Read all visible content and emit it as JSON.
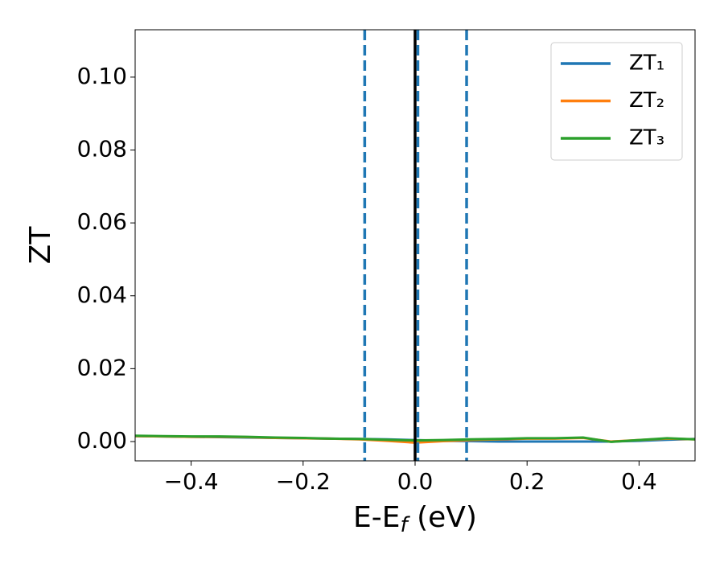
{
  "chart_data": {
    "type": "line",
    "x_label": {
      "main": "E-E",
      "sub": "f",
      "unit": "(eV)"
    },
    "y_label": "ZT",
    "x": [
      -0.5,
      -0.45,
      -0.4,
      -0.35,
      -0.3,
      -0.25,
      -0.2,
      -0.15,
      -0.1,
      -0.05,
      0.0,
      0.05,
      0.1,
      0.15,
      0.2,
      0.25,
      0.3,
      0.35,
      0.4,
      0.45,
      0.5
    ],
    "series": [
      {
        "name": "ZT₁",
        "color": "#1f77b4",
        "values": [
          0.0015,
          0.0014,
          0.0013,
          0.0012,
          0.0011,
          0.001,
          0.0009,
          0.0008,
          0.0007,
          0.0006,
          0.0004,
          0.0002,
          0.0001,
          0.0,
          0.0,
          0.0,
          0.0,
          0.0,
          0.0002,
          0.0005,
          0.0007
        ]
      },
      {
        "name": "ZT₂",
        "color": "#ff7f0e",
        "values": [
          0.0015,
          0.0014,
          0.0013,
          0.0013,
          0.0012,
          0.001,
          0.0009,
          0.0008,
          0.0006,
          0.0002,
          -0.0003,
          0.0001,
          0.0004,
          0.0006,
          0.0008,
          0.0008,
          0.001,
          0.0,
          0.0004,
          0.0008,
          0.0006
        ]
      },
      {
        "name": "ZT₃",
        "color": "#2ca02c",
        "values": [
          0.0016,
          0.0015,
          0.0014,
          0.0014,
          0.0013,
          0.0011,
          0.001,
          0.0008,
          0.0007,
          0.0005,
          0.0003,
          0.0004,
          0.0006,
          0.0007,
          0.0009,
          0.0009,
          0.0011,
          -0.0001,
          0.0004,
          0.0009,
          0.0006
        ]
      }
    ],
    "vlines": [
      {
        "x": -0.09,
        "color": "#1f77b4",
        "style": "dashed"
      },
      {
        "x": 0.0,
        "color": "#000000",
        "style": "solid"
      },
      {
        "x": 0.005,
        "color": "#1f77b4",
        "style": "dashed"
      },
      {
        "x": 0.092,
        "color": "#1f77b4",
        "style": "dashed"
      }
    ],
    "xlim": [
      -0.5,
      0.5
    ],
    "ylim": [
      -0.0053,
      0.113
    ],
    "xticks": [
      {
        "value": -0.4,
        "label": "−0.4"
      },
      {
        "value": -0.2,
        "label": "−0.2"
      },
      {
        "value": 0,
        "label": "0.0"
      },
      0.2,
      0.4
    ],
    "yticks": [
      {
        "value": 0,
        "label": "0.00"
      },
      {
        "value": 0.02,
        "label": "0.02"
      },
      {
        "value": 0.04,
        "label": "0.04"
      },
      {
        "value": 0.06,
        "label": "0.06"
      },
      {
        "value": 0.08,
        "label": "0.08"
      },
      {
        "value": 0.1,
        "label": "0.10"
      }
    ],
    "legend": "upper right",
    "grid": false
  }
}
